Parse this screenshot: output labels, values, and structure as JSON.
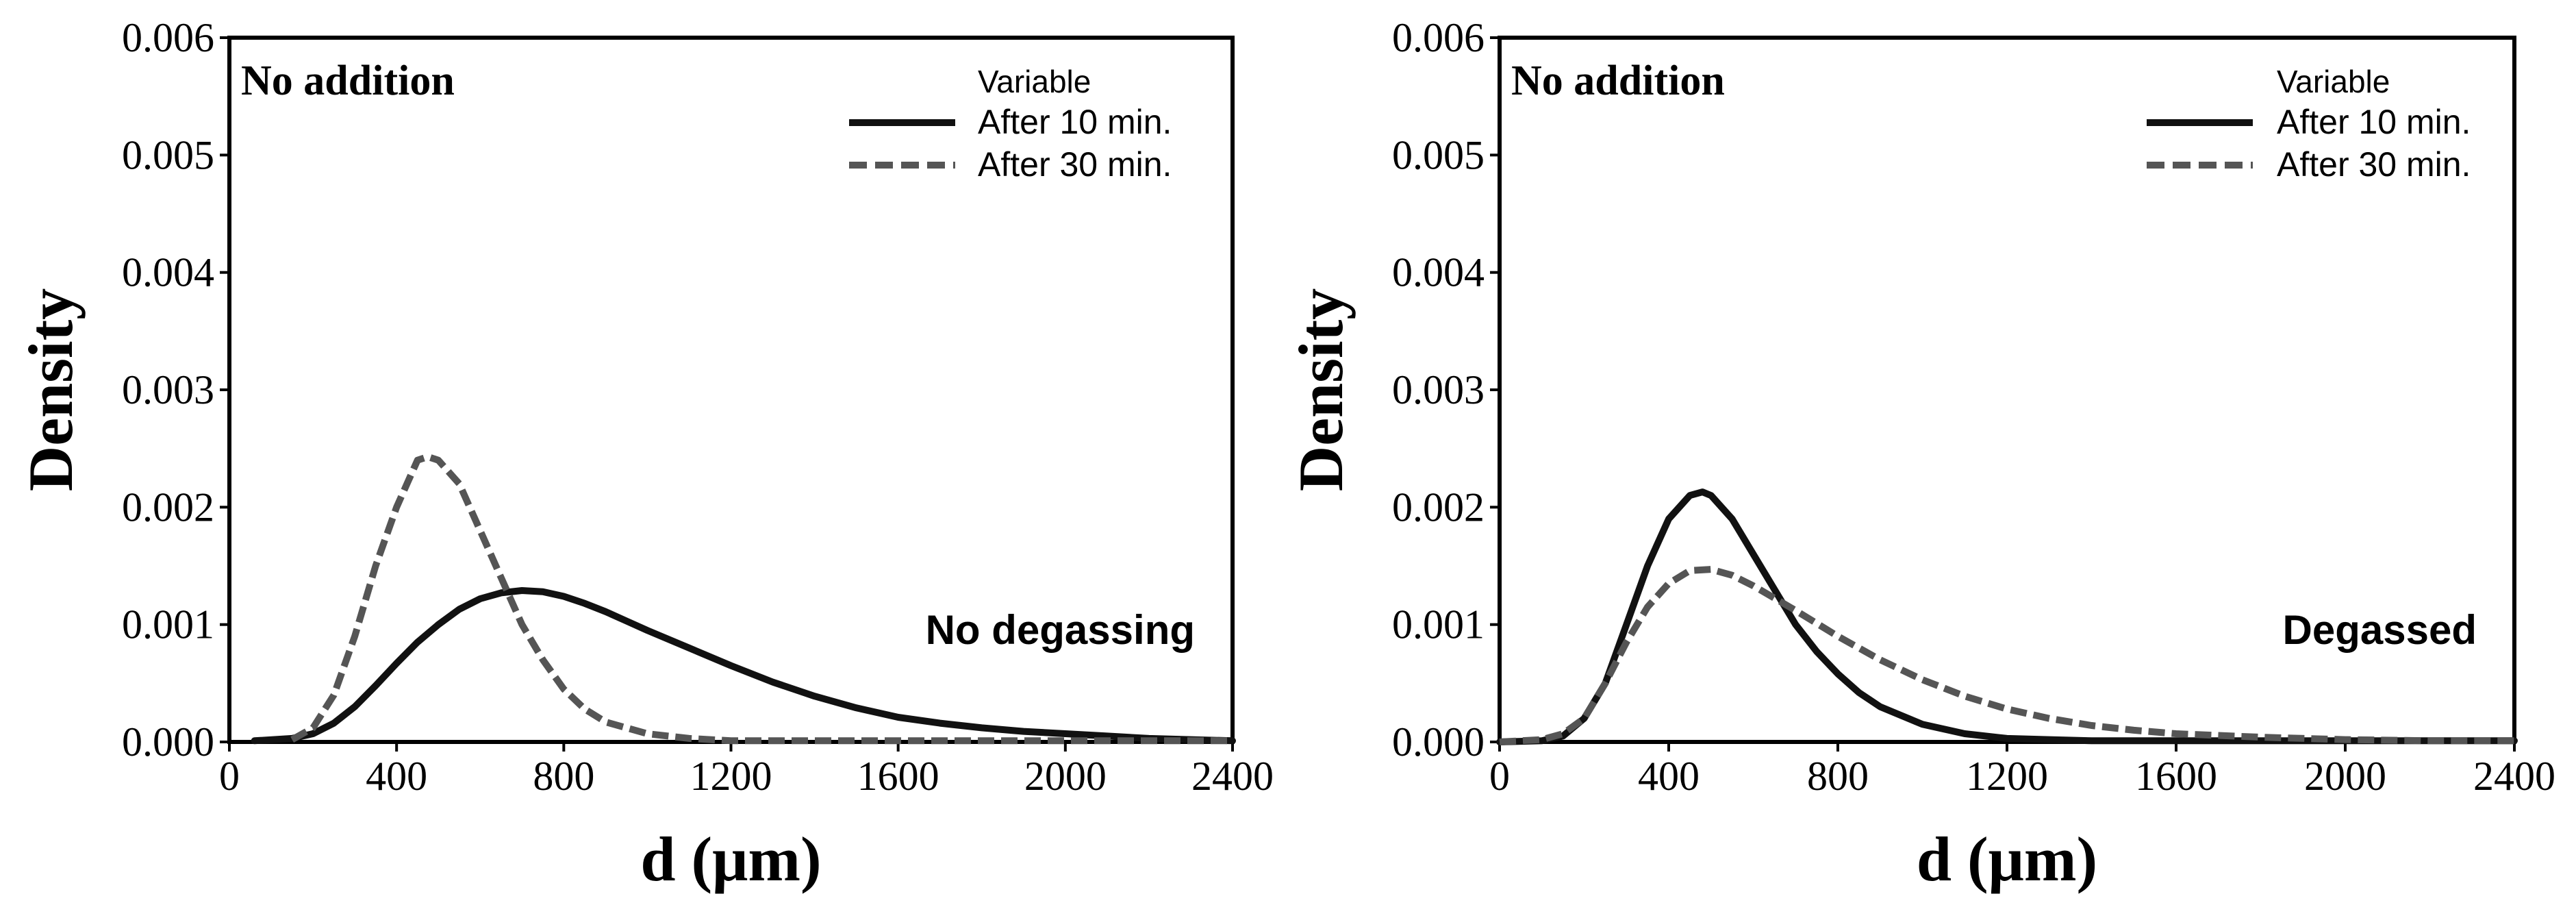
{
  "chart_data": [
    {
      "type": "line",
      "id": "left",
      "corner_label": "No addition",
      "condition_label": "No degassing",
      "xlabel": "d (μm)",
      "ylabel": "Density",
      "xlim": [
        0,
        2400
      ],
      "ylim": [
        0,
        0.006
      ],
      "xticks": [
        0,
        400,
        800,
        1200,
        1600,
        2000,
        2400
      ],
      "yticks": [
        "0.000",
        "0.001",
        "0.002",
        "0.003",
        "0.004",
        "0.005",
        "0.006"
      ],
      "legend": {
        "title": "Variable",
        "position": "top-right"
      },
      "series": [
        {
          "name": "After 10 min.",
          "style": "solid",
          "x": [
            60,
            150,
            200,
            250,
            300,
            350,
            400,
            450,
            500,
            550,
            600,
            650,
            700,
            750,
            800,
            850,
            900,
            950,
            1000,
            1100,
            1200,
            1300,
            1400,
            1500,
            1600,
            1700,
            1800,
            1900,
            2000,
            2100,
            2200,
            2300,
            2400
          ],
          "y": [
            1e-05,
            3e-05,
            7e-05,
            0.00016,
            0.0003,
            0.00048,
            0.00067,
            0.00085,
            0.001,
            0.00113,
            0.00122,
            0.00127,
            0.00129,
            0.00128,
            0.00124,
            0.00118,
            0.00111,
            0.00103,
            0.00095,
            0.0008,
            0.00065,
            0.00051,
            0.00039,
            0.00029,
            0.00021,
            0.00016,
            0.00012,
            9e-05,
            7e-05,
            5e-05,
            3e-05,
            2e-05,
            1e-05
          ]
        },
        {
          "name": "After 30 min.",
          "style": "dashed",
          "x": [
            150,
            200,
            250,
            300,
            350,
            400,
            450,
            475,
            500,
            550,
            600,
            650,
            700,
            750,
            800,
            850,
            900,
            1000,
            1100,
            1200,
            1300,
            1400,
            1600,
            2000,
            2400
          ],
          "y": [
            2e-05,
            0.00012,
            0.0004,
            0.0009,
            0.0015,
            0.002,
            0.0024,
            0.00243,
            0.0024,
            0.0022,
            0.0018,
            0.0014,
            0.001,
            0.0007,
            0.00045,
            0.00028,
            0.00017,
            7e-05,
            3e-05,
            1e-05,
            1e-05,
            1e-05,
            1e-05,
            1e-05,
            1e-05
          ]
        }
      ]
    },
    {
      "type": "line",
      "id": "right",
      "corner_label": "No addition",
      "condition_label": "Degassed",
      "xlabel": "d (μm)",
      "ylabel": "Density",
      "xlim": [
        0,
        2400
      ],
      "ylim": [
        0,
        0.006
      ],
      "xticks": [
        0,
        400,
        800,
        1200,
        1600,
        2000,
        2400
      ],
      "yticks": [
        "0.000",
        "0.001",
        "0.002",
        "0.003",
        "0.004",
        "0.005",
        "0.006"
      ],
      "legend": {
        "title": "Variable",
        "position": "top-right"
      },
      "series": [
        {
          "name": "After 10 min.",
          "style": "solid",
          "x": [
            0,
            100,
            150,
            200,
            250,
            300,
            350,
            400,
            450,
            480,
            500,
            550,
            600,
            650,
            700,
            750,
            800,
            850,
            900,
            1000,
            1100,
            1200,
            1300,
            1400,
            1600,
            2000,
            2400
          ],
          "y": [
            0,
            1e-05,
            5e-05,
            0.0002,
            0.0005,
            0.001,
            0.0015,
            0.0019,
            0.0021,
            0.00213,
            0.0021,
            0.0019,
            0.0016,
            0.0013,
            0.001,
            0.00077,
            0.00058,
            0.00042,
            0.0003,
            0.00015,
            7e-05,
            3e-05,
            2e-05,
            1e-05,
            1e-05,
            1e-05,
            1e-05
          ]
        },
        {
          "name": "After 30 min.",
          "style": "dashed",
          "x": [
            0,
            100,
            150,
            200,
            250,
            300,
            350,
            400,
            450,
            500,
            550,
            600,
            700,
            800,
            900,
            1000,
            1100,
            1200,
            1300,
            1400,
            1500,
            1600,
            1800,
            2000,
            2200,
            2400
          ],
          "y": [
            0,
            2e-05,
            7e-05,
            0.0002,
            0.0005,
            0.00085,
            0.00115,
            0.00135,
            0.00146,
            0.00147,
            0.00142,
            0.00133,
            0.00112,
            0.0009,
            0.0007,
            0.00053,
            0.00039,
            0.00028,
            0.0002,
            0.00014,
            0.0001,
            7e-05,
            4e-05,
            2e-05,
            1e-05,
            1e-05
          ]
        }
      ]
    }
  ]
}
